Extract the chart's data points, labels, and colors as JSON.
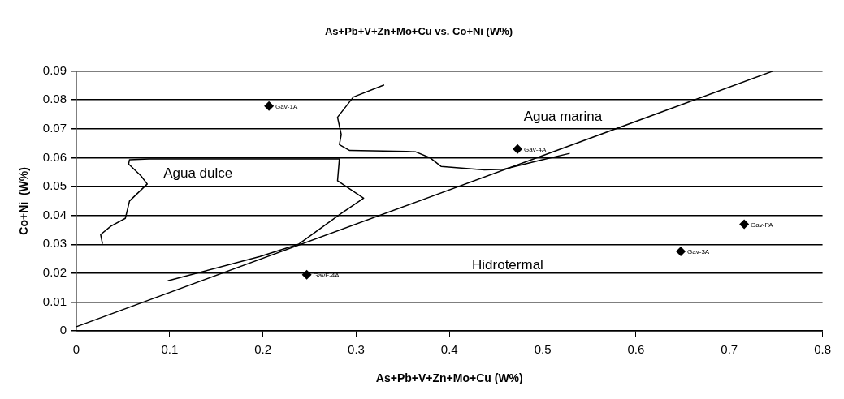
{
  "chart_data": {
    "type": "scatter",
    "title": "As+Pb+V+Zn+Mo+Cu vs. Co+Ni (W%)",
    "xlabel": "As+Pb+V+Zn+Mo+Cu (W%)",
    "ylabel": "Co+Ni  (W%)",
    "xlim": [
      0,
      0.8
    ],
    "xticks": [
      0,
      0.1,
      0.2,
      0.3,
      0.4,
      0.5,
      0.6,
      0.7,
      0.8
    ],
    "ylim": [
      0,
      0.09
    ],
    "yticks": [
      0,
      0.01,
      0.02,
      0.03,
      0.04,
      0.05,
      0.06,
      0.07,
      0.08,
      0.09
    ],
    "grid": "y",
    "legend": false,
    "series": [
      {
        "type": "line",
        "color": "#000000",
        "marker": "none",
        "x": [
          0.028,
          0.026,
          0.037,
          0.0525,
          0.057,
          0.076,
          0.069,
          0.056,
          0.057,
          0.078,
          0.2,
          0.282,
          0.28,
          0.308,
          0.284,
          0.238,
          0.197,
          0.098
        ],
        "values": [
          0.0302,
          0.0334,
          0.0363,
          0.039,
          0.045,
          0.0509,
          0.0538,
          0.0578,
          0.0593,
          0.0596,
          0.0596,
          0.0596,
          0.052,
          0.046,
          0.0407,
          0.03,
          0.0258,
          0.0174
        ]
      },
      {
        "type": "line",
        "color": "#000000",
        "marker": "none",
        "x": [
          0.33,
          0.297,
          0.28,
          0.284,
          0.282,
          0.293,
          0.354,
          0.364,
          0.379,
          0.391,
          0.4375,
          0.458,
          0.496,
          0.529
        ],
        "values": [
          0.0852,
          0.081,
          0.074,
          0.068,
          0.0645,
          0.0625,
          0.0622,
          0.062,
          0.06,
          0.057,
          0.0558,
          0.056,
          0.059,
          0.0615
        ]
      },
      {
        "type": "line",
        "color": "#000000",
        "marker": "none",
        "x": [
          0,
          0.747
        ],
        "values": [
          0.0015,
          0.09
        ]
      },
      {
        "type": "scatter",
        "color": "#000000",
        "marker": "diamond",
        "x": [
          0.2065,
          0.247,
          0.473,
          0.716,
          0.648
        ],
        "values": [
          0.0779,
          0.0195,
          0.063,
          0.037,
          0.0276
        ],
        "value_labels": [
          "Gav-1A",
          "GavF-4A",
          "Gav-4A",
          "Gav-PA",
          "Gav-3A"
        ]
      }
    ],
    "annotations": [
      "Agua dulce",
      "Agua marina",
      "Hidrotermal"
    ]
  }
}
